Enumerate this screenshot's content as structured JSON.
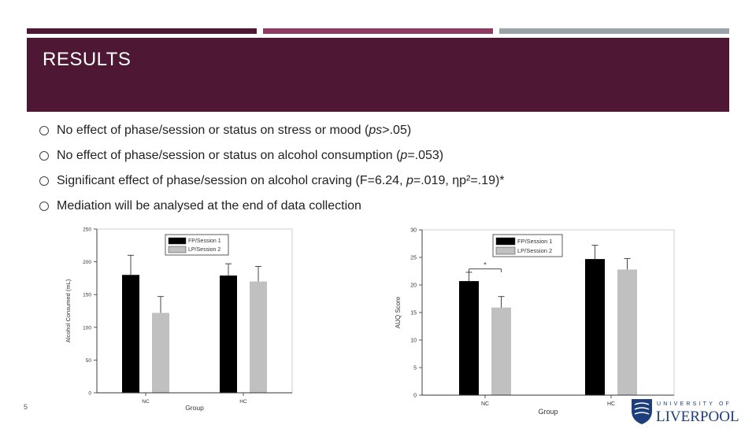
{
  "header": {
    "title": "RESULTS"
  },
  "topbars": [
    {
      "color": "#4e1733"
    },
    {
      "color": "#8e3a64"
    },
    {
      "color": "#9aa3a8"
    }
  ],
  "bullets": [
    {
      "pre": "No effect of phase/session or status on stress or mood (",
      "ital": "ps",
      "post": ">.05)"
    },
    {
      "pre": "No effect of phase/session or status on alcohol consumption (",
      "ital": "p",
      "post": "=.053)"
    },
    {
      "pre": "Significant effect of phase/session on alcohol craving (F=6.24, ",
      "ital": "p",
      "post": "=.019, ηp²=.19)*"
    },
    {
      "pre": "Mediation will be analysed at the end of data collection",
      "ital": "",
      "post": ""
    }
  ],
  "page_number": "5",
  "logo": {
    "text_top": "UNIVERSITY OF",
    "text_main": "LIVERPOOL"
  },
  "chart_data": [
    {
      "type": "bar",
      "xlabel": "Group",
      "ylabel": "Alcohol Consumed (mL)",
      "categories": [
        "NC",
        "HC"
      ],
      "ylim": [
        0,
        250
      ],
      "yticks": [
        0,
        50,
        100,
        150,
        200,
        250
      ],
      "legend_position": "top-right",
      "series": [
        {
          "name": "FP/Session 1",
          "color": "#000000",
          "values": [
            180,
            179
          ],
          "errors": [
            30,
            18
          ]
        },
        {
          "name": "LP/Session 2",
          "color": "#c0c0c0",
          "values": [
            122,
            170
          ],
          "errors": [
            25,
            23
          ]
        }
      ]
    },
    {
      "type": "bar",
      "xlabel": "Group",
      "ylabel": "AUQ Score",
      "categories": [
        "NC",
        "HC"
      ],
      "ylim": [
        0,
        30
      ],
      "yticks": [
        0,
        5,
        10,
        15,
        20,
        25,
        30
      ],
      "legend_position": "top-right",
      "annotation": "*",
      "series": [
        {
          "name": "FP/Session 1",
          "color": "#000000",
          "values": [
            20.7,
            24.7
          ],
          "errors": [
            1.6,
            2.5
          ]
        },
        {
          "name": "LP/Session 2",
          "color": "#c0c0c0",
          "values": [
            15.9,
            22.8
          ],
          "errors": [
            2.0,
            2.0
          ]
        }
      ]
    }
  ]
}
